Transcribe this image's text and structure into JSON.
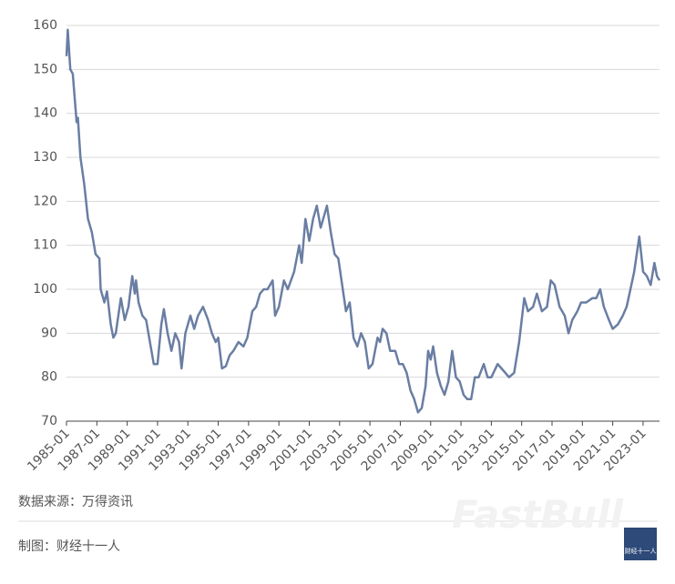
{
  "chart_data": {
    "type": "line",
    "x": [
      "1985-01",
      "1985-02",
      "1985-04",
      "1985-06",
      "1985-09",
      "1985-10",
      "1985-12",
      "1986-03",
      "1986-06",
      "1986-09",
      "1986-12",
      "1987-03",
      "1987-04",
      "1987-07",
      "1987-09",
      "1987-12",
      "1988-02",
      "1988-04",
      "1988-08",
      "1988-11",
      "1989-02",
      "1989-05",
      "1989-07",
      "1989-08",
      "1989-10",
      "1990-01",
      "1990-04",
      "1990-07",
      "1990-10",
      "1991-01",
      "1991-04",
      "1991-06",
      "1991-09",
      "1991-12",
      "1992-03",
      "1992-06",
      "1992-08",
      "1992-11",
      "1993-03",
      "1993-06",
      "1993-09",
      "1994-01",
      "1994-05",
      "1994-08",
      "1994-11",
      "1995-01",
      "1995-04",
      "1995-07",
      "1995-10",
      "1996-01",
      "1996-05",
      "1996-09",
      "1996-12",
      "1997-04",
      "1997-07",
      "1997-10",
      "1998-01",
      "1998-04",
      "1998-08",
      "1998-10",
      "1999-01",
      "1999-05",
      "1999-08",
      "2000-01",
      "2000-05",
      "2000-07",
      "2000-10",
      "2001-01",
      "2001-04",
      "2001-07",
      "2001-10",
      "2002-01",
      "2002-03",
      "2002-06",
      "2002-09",
      "2002-12",
      "2003-03",
      "2003-06",
      "2003-09",
      "2003-12",
      "2004-03",
      "2004-06",
      "2004-09",
      "2004-12",
      "2005-03",
      "2005-07",
      "2005-09",
      "2005-11",
      "2006-02",
      "2006-05",
      "2006-09",
      "2006-12",
      "2007-03",
      "2007-06",
      "2007-09",
      "2007-12",
      "2008-03",
      "2008-06",
      "2008-09",
      "2008-11",
      "2009-01",
      "2009-03",
      "2009-06",
      "2009-09",
      "2009-12",
      "2010-03",
      "2010-06",
      "2010-09",
      "2010-12",
      "2011-03",
      "2011-06",
      "2011-09",
      "2011-12",
      "2012-03",
      "2012-07",
      "2012-10",
      "2013-01",
      "2013-06",
      "2013-09",
      "2013-12",
      "2014-03",
      "2014-07",
      "2014-11",
      "2015-03",
      "2015-06",
      "2015-10",
      "2016-01",
      "2016-05",
      "2016-09",
      "2016-12",
      "2017-03",
      "2017-07",
      "2017-11",
      "2018-02",
      "2018-05",
      "2018-09",
      "2018-12",
      "2019-04",
      "2019-09",
      "2019-12",
      "2020-03",
      "2020-06",
      "2020-10",
      "2021-01",
      "2021-05",
      "2021-09",
      "2021-12",
      "2022-03",
      "2022-06",
      "2022-09",
      "2022-10",
      "2023-01",
      "2023-04",
      "2023-07",
      "2023-10",
      "2023-12",
      "2024-02"
    ],
    "values": [
      153,
      159,
      150,
      149,
      138,
      139,
      130,
      124,
      116,
      113,
      108,
      107,
      100,
      97,
      99.5,
      92,
      89,
      90,
      98,
      93,
      96,
      103,
      99,
      102,
      97,
      94,
      93,
      88,
      83,
      83,
      92,
      95.5,
      90,
      86,
      90,
      88,
      82,
      90,
      94,
      91,
      94,
      96,
      93,
      90,
      88,
      89,
      82,
      82.5,
      85,
      86,
      88,
      87,
      89,
      95,
      96,
      99,
      100,
      100,
      102,
      94,
      96,
      102,
      100,
      104,
      110,
      106,
      116,
      111,
      116,
      119,
      114,
      117,
      119,
      113,
      108,
      107,
      101,
      95,
      97,
      89,
      87,
      90,
      88,
      82,
      83,
      89,
      88,
      91,
      90,
      86,
      86,
      83,
      83,
      81,
      77,
      75,
      72,
      73,
      78,
      86,
      84,
      87,
      81,
      78,
      76,
      79,
      86,
      80,
      79,
      76,
      75,
      75,
      80,
      80,
      83,
      80,
      80,
      83,
      82,
      81,
      80,
      81,
      88,
      98,
      95,
      96,
      99,
      95,
      96,
      102,
      101,
      96,
      94,
      90,
      93,
      95,
      97,
      97,
      98,
      98,
      100,
      96,
      93,
      91,
      92,
      94,
      96,
      100,
      104,
      110,
      112,
      104,
      103,
      101,
      106,
      103,
      102
    ],
    "color": "#6a7ea3",
    "xlim": [
      "1985-01",
      "2024-02"
    ],
    "xticks": [
      "1985-01",
      "1987-01",
      "1989-01",
      "1991-01",
      "1993-01",
      "1995-01",
      "1997-01",
      "1999-01",
      "2001-01",
      "2003-01",
      "2005-01",
      "2007-01",
      "2009-01",
      "2011-01",
      "2013-01",
      "2015-01",
      "2017-01",
      "2019-01",
      "2021-01",
      "2023-01"
    ],
    "ylim": [
      70,
      160
    ],
    "yticks": [
      70,
      80,
      90,
      100,
      110,
      120,
      130,
      140,
      150,
      160
    ],
    "grid": true
  },
  "footer": {
    "source": "数据来源：万得资讯",
    "credit": "制图：财经十一人",
    "watermark": "FastBull",
    "logo": "财经十一人"
  }
}
